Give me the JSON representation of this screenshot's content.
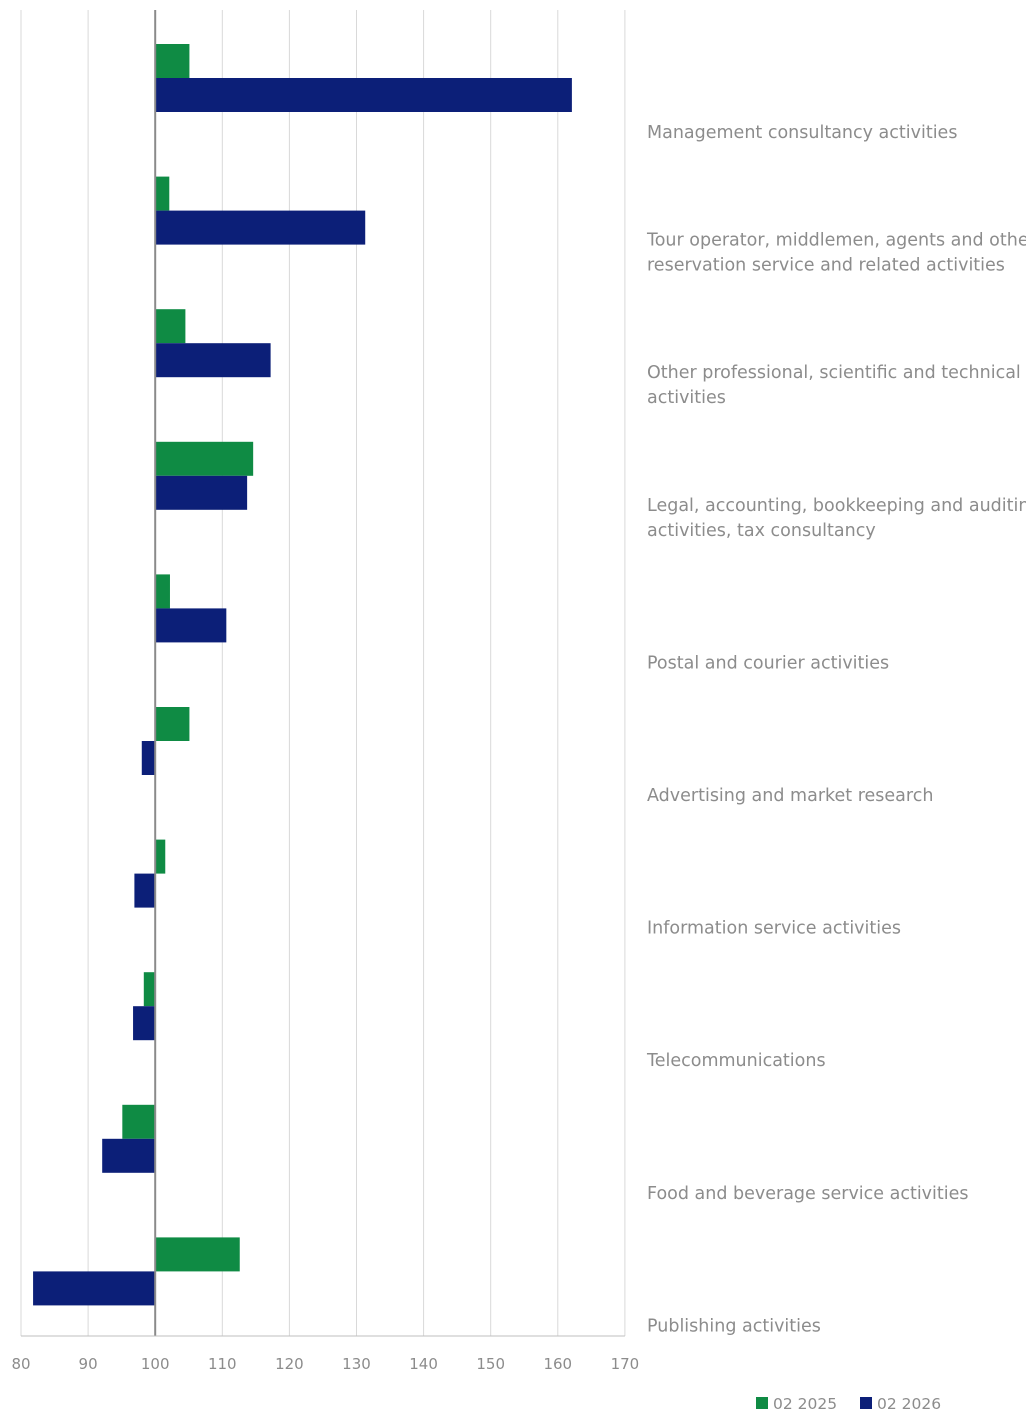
{
  "chart_data": {
    "type": "bar",
    "orientation": "horizontal",
    "baseline": 100,
    "xlim": [
      80,
      170
    ],
    "xticks": [
      "80",
      "90",
      "100",
      "110",
      "120",
      "130",
      "140",
      "150",
      "160",
      "170"
    ],
    "grid": true,
    "legend_position": "bottom-right",
    "categories": [
      [
        "Management consultancy activities"
      ],
      [
        "Tour operator, middlemen, agents and other",
        "reservation service and related activities"
      ],
      [
        "Other professional, scientific and technical",
        "activities"
      ],
      [
        "Legal, accounting, bookkeeping and auditing",
        "activities, tax consultancy"
      ],
      [
        "Postal and courier activities"
      ],
      [
        "Advertising and market research"
      ],
      [
        "Information service activities"
      ],
      [
        "Telecommunications"
      ],
      [
        "Food and beverage service activities"
      ],
      [
        "Publishing activities"
      ]
    ],
    "series": [
      {
        "name": "02 2025",
        "color": "#0f8b44",
        "values": [
          105.1,
          102.1,
          104.5,
          114.6,
          102.2,
          105.1,
          101.5,
          98.3,
          95.1,
          112.6
        ]
      },
      {
        "name": "02 2026",
        "color": "#0c1f78",
        "values": [
          162.1,
          131.3,
          117.2,
          113.7,
          110.6,
          98.0,
          96.9,
          96.7,
          92.1,
          81.8
        ]
      }
    ]
  }
}
